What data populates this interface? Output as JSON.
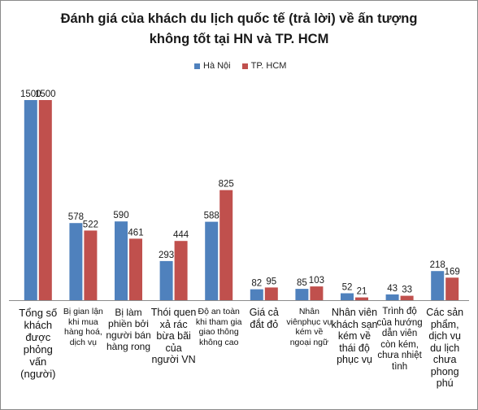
{
  "title_line1": "Đánh giá của khách du lịch quốc tế (trả lời) về ấn tượng",
  "title_line2": "không tốt tại HN và TP. HCM",
  "colors": {
    "ha_noi": "#4f81bd",
    "hcm": "#c0504d"
  },
  "chart_data": {
    "type": "bar",
    "title": "Đánh giá của khách du lịch quốc tế (trả lời) về ấn tượng không tốt tại HN và TP. HCM",
    "categories": [
      "Tổng số khách được phỏng vấn (người)",
      "Bị gian lận khi mua hàng hoá, dịch vụ",
      "Bị làm phiền bởi người bán hàng rong",
      "Thói quen xả rác bừa bãi của người VN",
      "Độ an toàn khi tham gia giao thông không cao",
      "Giá cả đắt đỏ",
      "Nhân viênphục vụ kém về ngoại ngữ",
      "Nhân viên khách sạn kém về thái độ phục vụ",
      "Trình độ của hướng dẫn viên còn kém, chưa nhiệt tình",
      "Các sản phẩm, dịch vụ du lịch chưa phong phú"
    ],
    "series": [
      {
        "name": "Hà Nội",
        "values": [
          1500,
          578,
          590,
          293,
          588,
          82,
          85,
          52,
          43,
          218
        ]
      },
      {
        "name": "TP. HCM",
        "values": [
          1500,
          522,
          461,
          444,
          825,
          95,
          103,
          21,
          33,
          169
        ]
      }
    ],
    "xlabel": "",
    "ylabel": "",
    "legend": "top-center",
    "grid": false,
    "data_labels": true
  }
}
